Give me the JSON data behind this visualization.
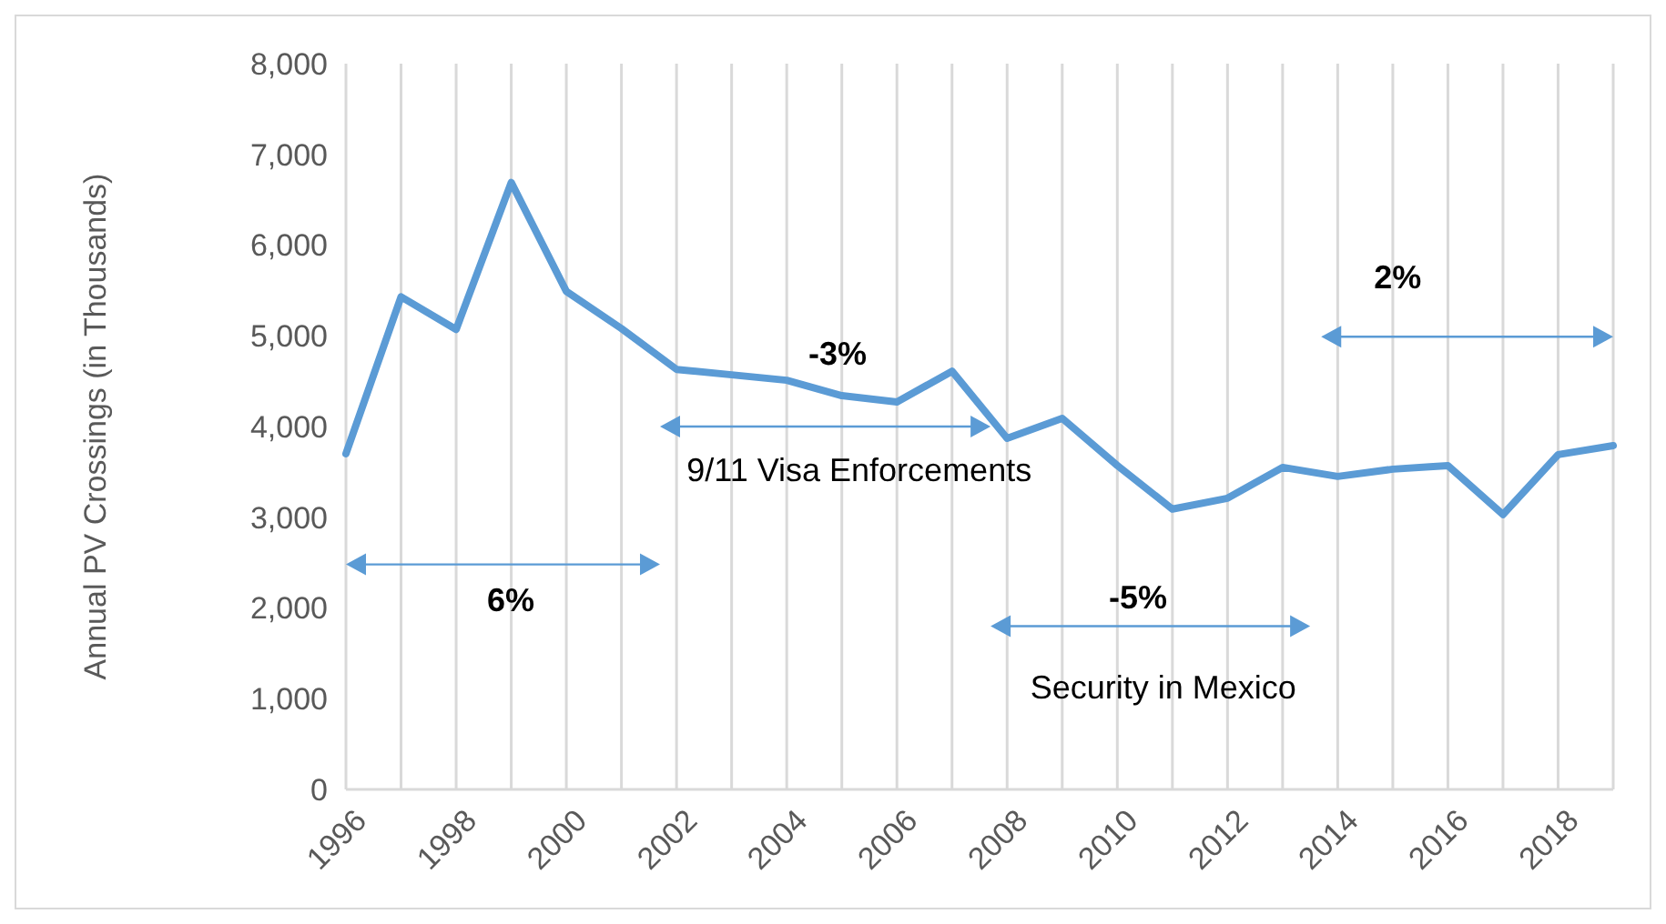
{
  "chart_data": {
    "type": "line",
    "ylabel": "Annual PV Crossings (in Thousands)",
    "x": [
      1996,
      1997,
      1998,
      1999,
      2000,
      2001,
      2002,
      2003,
      2004,
      2005,
      2006,
      2007,
      2008,
      2009,
      2010,
      2011,
      2012,
      2013,
      2014,
      2015,
      2016,
      2017,
      2018,
      2019
    ],
    "series": [
      {
        "color": "#5b9bd5",
        "values": [
          3700,
          5430,
          5070,
          6690,
          5490,
          5080,
          4630,
          4570,
          4510,
          4340,
          4270,
          4610,
          3870,
          4090,
          3570,
          3090,
          3210,
          3550,
          3450,
          3530,
          3570,
          3030,
          3690,
          3790
        ]
      }
    ],
    "xlim": [
      1996,
      2019
    ],
    "xticks": [
      1996,
      {
        "value": 1997,
        "label": null
      },
      1998,
      {
        "value": 1999,
        "label": null
      },
      2000,
      {
        "value": 2001,
        "label": null
      },
      2002,
      {
        "value": 2003,
        "label": null
      },
      2004,
      {
        "value": 2005,
        "label": null
      },
      2006,
      {
        "value": 2007,
        "label": null
      },
      2008,
      {
        "value": 2009,
        "label": null
      },
      2010,
      {
        "value": 2011,
        "label": null
      },
      2012,
      {
        "value": 2013,
        "label": null
      },
      2014,
      {
        "value": 2015,
        "label": null
      },
      2016,
      {
        "value": 2017,
        "label": null
      },
      2018,
      {
        "value": 2019,
        "label": null
      }
    ],
    "ylim": [
      0,
      8000
    ],
    "yticks": [
      {
        "value": 0,
        "label": "0"
      },
      {
        "value": 1000,
        "label": "1,000"
      },
      {
        "value": 2000,
        "label": "2,000"
      },
      {
        "value": 3000,
        "label": "3,000"
      },
      {
        "value": 4000,
        "label": "4,000"
      },
      {
        "value": 5000,
        "label": "5,000"
      },
      {
        "value": 6000,
        "label": "6,000"
      },
      {
        "value": 7000,
        "label": "7,000"
      },
      {
        "value": 8000,
        "label": "8,000"
      }
    ],
    "grid": "x",
    "marker": "none",
    "line_style": "solid",
    "annotations": [
      "6%",
      "-3%",
      "9/11 Visa Enforcements",
      "-5%",
      "Security in Mexico",
      "2%"
    ]
  }
}
